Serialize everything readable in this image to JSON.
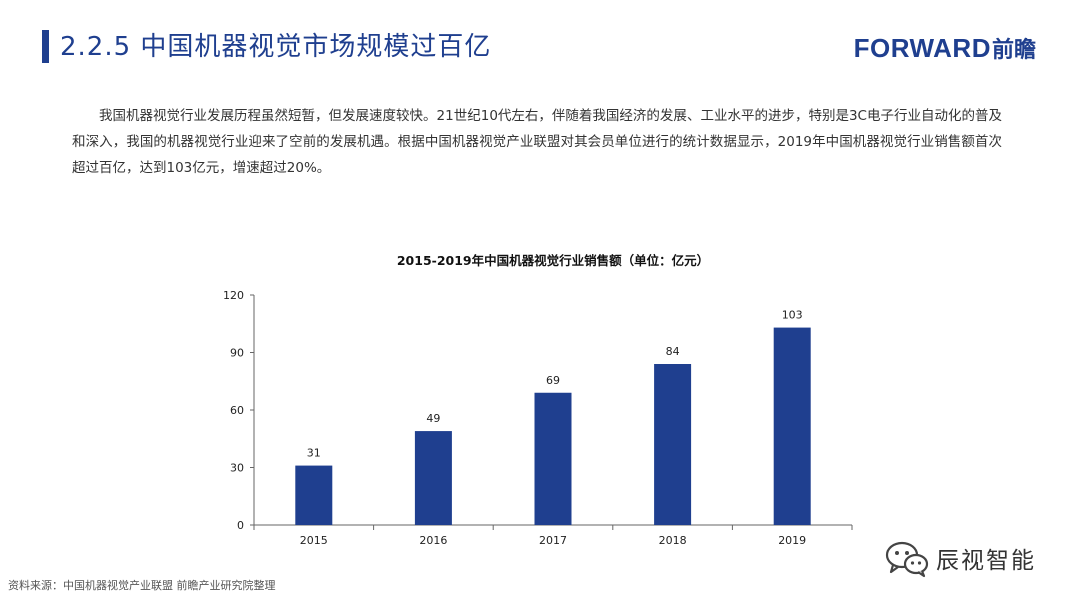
{
  "header": {
    "title": "2.2.5 中国机器视觉市场规模过百亿",
    "logo_en": "FORWARD",
    "logo_cn": "前瞻"
  },
  "intro_text": "我国机器视觉行业发展历程虽然短暂，但发展速度较快。21世纪10代左右，伴随着我国经济的发展、工业水平的进步，特别是3C电子行业自动化的普及和深入，我国的机器视觉行业迎来了空前的发展机遇。根据中国机器视觉产业联盟对其会员单位进行的统计数据显示，2019年中国机器视觉行业销售额首次超过百亿，达到103亿元，增速超过20%。",
  "chart_data": {
    "type": "bar",
    "title": "2015-2019年中国机器视觉行业销售额（单位：亿元）",
    "categories": [
      "2015",
      "2016",
      "2017",
      "2018",
      "2019"
    ],
    "values": [
      31,
      49,
      69,
      84,
      103
    ],
    "ylim": [
      0,
      120
    ],
    "yticks": [
      0,
      30,
      60,
      90,
      120
    ],
    "bar_color": "#1f3f8f",
    "grid": false,
    "legend": "none"
  },
  "footer": {
    "source": "资料来源：中国机器视觉产业联盟 前瞻产业研究院整理",
    "wechat_account": "辰视智能"
  },
  "colors": {
    "brand": "#1f3f8f"
  }
}
